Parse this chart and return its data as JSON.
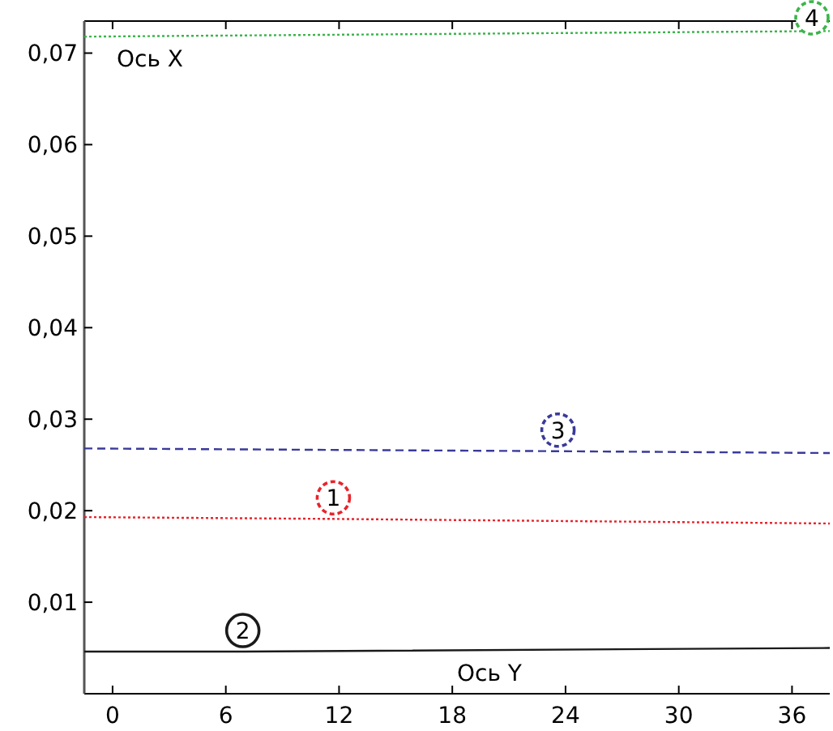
{
  "chart_data": {
    "type": "line",
    "xlim": [
      -1.5,
      38
    ],
    "xticks": [
      0,
      6,
      12,
      18,
      24,
      30,
      36
    ],
    "ylim": [
      0,
      0.0735
    ],
    "yticks": [
      {
        "value": 0.01,
        "label": "0,01"
      },
      {
        "value": 0.02,
        "label": "0,02"
      },
      {
        "value": 0.03,
        "label": "0,03"
      },
      {
        "value": 0.04,
        "label": "0,04"
      },
      {
        "value": 0.05,
        "label": "0,05"
      },
      {
        "value": 0.06,
        "label": "0,06"
      },
      {
        "value": 0.07,
        "label": "0,07"
      }
    ],
    "grid": false,
    "series": [
      {
        "name": "1",
        "color": "#e8242b",
        "line_style": "dotted",
        "x": [
          -1.5,
          11.7,
          38
        ],
        "values": [
          0.0193,
          0.0191,
          0.0186
        ]
      },
      {
        "name": "2",
        "color": "#1a1a1a",
        "line_style": "solid",
        "x": [
          -1.5,
          6.9,
          38
        ],
        "values": [
          0.0046,
          0.0046,
          0.005
        ]
      },
      {
        "name": "3",
        "color": "#3a3a9a",
        "line_style": "dashed",
        "x": [
          -1.5,
          23.6,
          38
        ],
        "values": [
          0.0268,
          0.0265,
          0.0263
        ]
      },
      {
        "name": "4",
        "color": "#3cb44b",
        "line_style": "dotted",
        "x": [
          -1.5,
          37.3,
          38
        ],
        "values": [
          0.0718,
          0.0724,
          0.0724
        ]
      }
    ],
    "annotations": [
      "Ось X",
      "Ось Y"
    ]
  }
}
